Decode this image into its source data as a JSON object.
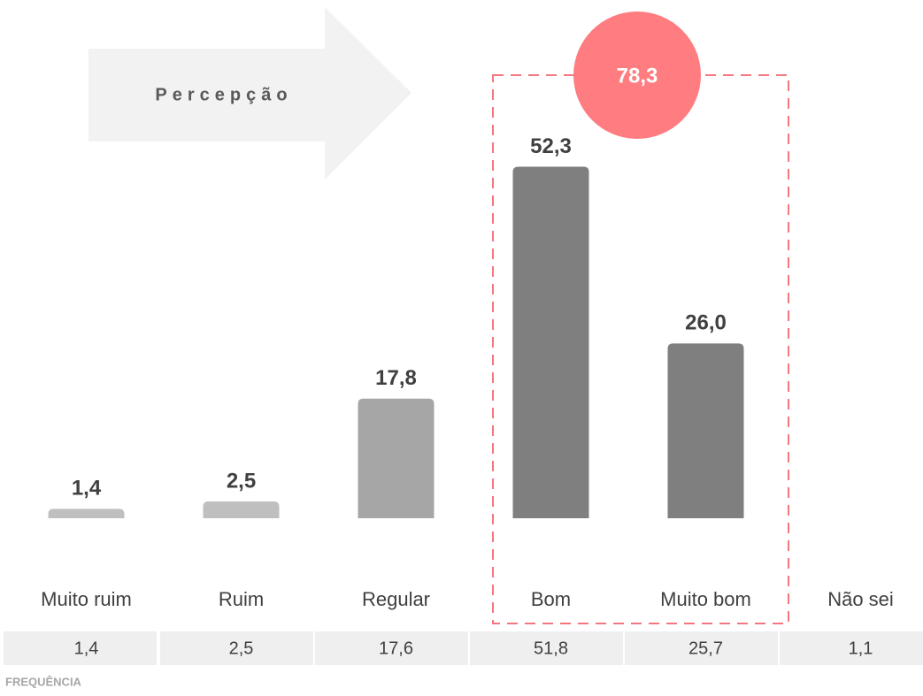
{
  "chart_data": {
    "type": "bar",
    "arrow_label": "Percepção",
    "categories": [
      "Muito ruim",
      "Ruim",
      "Regular",
      "Bom",
      "Muito bom",
      "Não sei"
    ],
    "values": [
      1.4,
      2.5,
      17.8,
      52.3,
      26.0,
      null
    ],
    "value_labels": [
      "1,4",
      "2,5",
      "17,8",
      "52,3",
      "26,0",
      null
    ],
    "colors": [
      "#bfbfbf",
      "#bfbfbf",
      "#a6a6a6",
      "#7f7f7f",
      "#7f7f7f",
      "#bfbfbf"
    ],
    "highlight": {
      "value": 78.3,
      "label": "78,3",
      "color": "#ff7c80"
    },
    "frequency": {
      "label": "FREQUÊNCIA",
      "values": [
        "1,4",
        "2,5",
        "17,6",
        "51,8",
        "25,7",
        "1,1"
      ]
    }
  }
}
